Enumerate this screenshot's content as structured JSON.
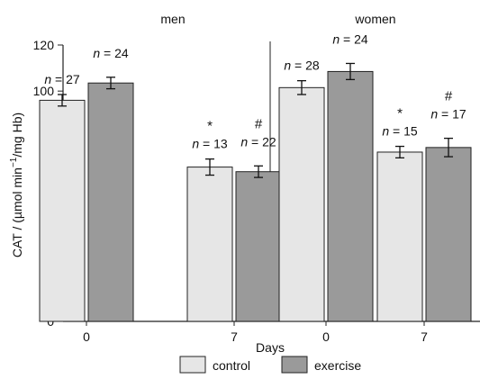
{
  "chart_data": {
    "type": "bar",
    "panels": [
      {
        "title": "men",
        "groups": [
          {
            "day": "0",
            "bars": [
              {
                "series": "control",
                "value": 96,
                "error": 2.5,
                "n_label": "n",
                "n_value": "= 27",
                "marker": ""
              },
              {
                "series": "exercise",
                "value": 103.5,
                "error": 2.5,
                "n_label": "n",
                "n_value": "= 24",
                "marker": ""
              }
            ]
          },
          {
            "day": "7",
            "bars": [
              {
                "series": "control",
                "value": 67,
                "error": 3.5,
                "n_label": "n",
                "n_value": "= 13",
                "marker": "*"
              },
              {
                "series": "exercise",
                "value": 65,
                "error": 2.5,
                "n_label": "n",
                "n_value": "= 22",
                "marker": "#"
              }
            ]
          }
        ]
      },
      {
        "title": "women",
        "groups": [
          {
            "day": "0",
            "bars": [
              {
                "series": "control",
                "value": 101.5,
                "error": 3,
                "n_label": "n",
                "n_value": "= 28",
                "marker": ""
              },
              {
                "series": "exercise",
                "value": 108.5,
                "error": 3.5,
                "n_label": "n",
                "n_value": "= 24",
                "marker": ""
              }
            ]
          },
          {
            "day": "7",
            "bars": [
              {
                "series": "control",
                "value": 73.5,
                "error": 2.5,
                "n_label": "n",
                "n_value": "= 15",
                "marker": "*"
              },
              {
                "series": "exercise",
                "value": 75.5,
                "error": 4,
                "n_label": "n",
                "n_value": "= 17",
                "marker": "#"
              }
            ]
          }
        ]
      }
    ],
    "ylabel_prefix": "CAT / (µmol min",
    "ylabel_sup": "−1",
    "ylabel_suffix": "/mg Hb)",
    "xlabel": "Days",
    "ylim": [
      0,
      120
    ],
    "yticks": [
      "0",
      "20",
      "40",
      "60",
      "80",
      "100",
      "120"
    ],
    "grid": false,
    "legend": {
      "placement": "bottom-center",
      "entries": [
        {
          "label": "control",
          "color": "#e6e6e6"
        },
        {
          "label": "exercise",
          "color": "#9a9a9a"
        }
      ]
    },
    "colors": {
      "control": "#e6e6e6",
      "exercise": "#9a9a9a",
      "axis": "#222222"
    }
  }
}
